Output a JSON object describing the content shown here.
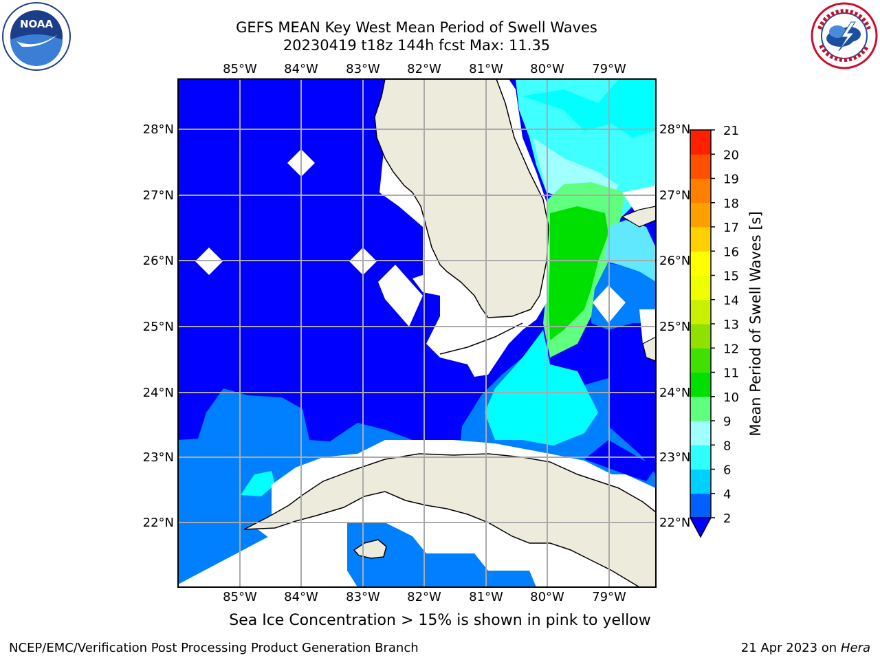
{
  "header": {
    "title_line1": "GEFS MEAN Key West Mean Period of Swell Waves",
    "title_line2": "20230419 t18z 144h fcst   Max: 11.35"
  },
  "logos": {
    "left": {
      "icon": "noaa-logo",
      "text": "NOAA"
    },
    "right": {
      "icon": "nws-logo"
    }
  },
  "map": {
    "lon_labels": [
      "85°W",
      "84°W",
      "83°W",
      "82°W",
      "81°W",
      "80°W",
      "79°W"
    ],
    "lat_labels": [
      "28°N",
      "27°N",
      "26°N",
      "25°N",
      "24°N",
      "23°N",
      "22°N"
    ],
    "regions": [
      "Florida",
      "Cuba"
    ],
    "colors": {
      "land": "#ecebdc",
      "ocean_low": "#0000ff",
      "ocean_mid": "#0080ff",
      "swell_cyan": "#00ffff",
      "swell_lightcyan": "#80ffff",
      "swell_green": "#00e000",
      "swell_lightgreen": "#50ff70"
    }
  },
  "colorbar": {
    "label": "Mean Period of Swell Waves [s]",
    "ticks": [
      "2",
      "4",
      "6",
      "8",
      "9",
      "10",
      "11",
      "12",
      "13",
      "14",
      "15",
      "16",
      "17",
      "18",
      "19",
      "20",
      "21"
    ],
    "colors": [
      "#0060ff",
      "#00d0ff",
      "#30ffff",
      "#a0ffff",
      "#60ff80",
      "#00e000",
      "#40e000",
      "#90e000",
      "#c8f000",
      "#f0ff00",
      "#ffff00",
      "#ffd000",
      "#ffa000",
      "#ff8000",
      "#ff5000",
      "#ff2000"
    ],
    "extend_color": "#0000ff"
  },
  "footer": {
    "caption": "Sea Ice Concentration > 15% is shown in pink to yellow",
    "credit": "NCEP/EMC/Verification Post Processing Product Generation Branch",
    "date": "21 Apr 2023 on",
    "host": "Hera"
  }
}
